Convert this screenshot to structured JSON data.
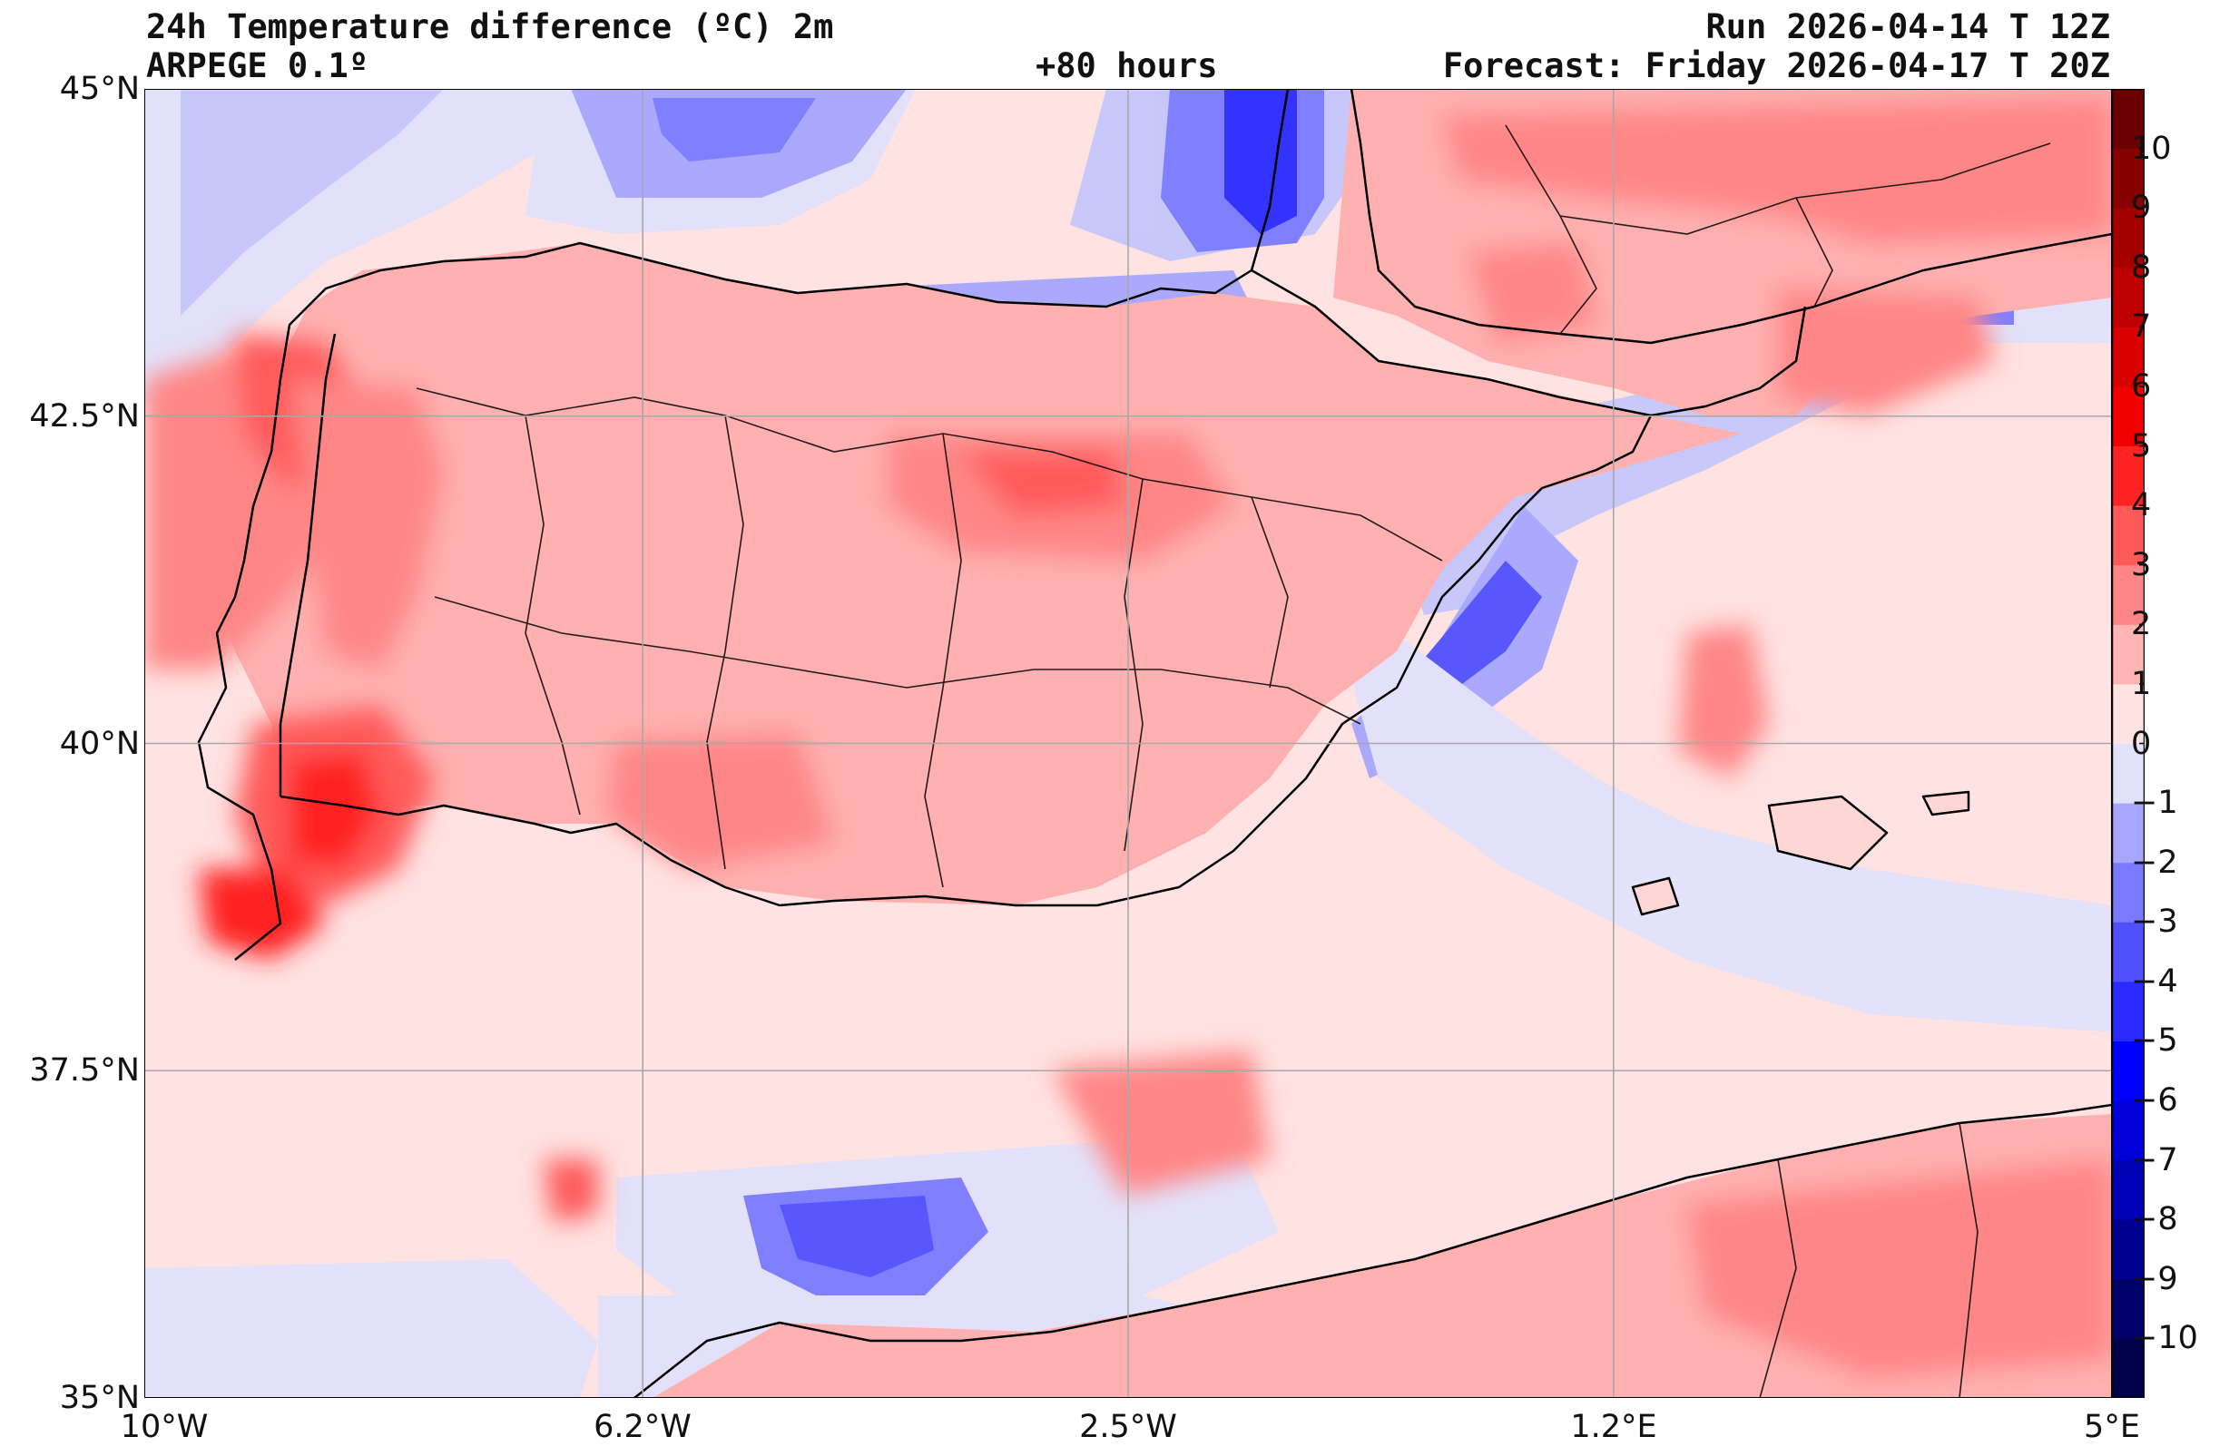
{
  "header": {
    "title": "24h Temperature difference (ºC) 2m",
    "model": "ARPEGE 0.1º",
    "lead_time": "+80 hours",
    "run": "Run 2026-04-14 T 12Z",
    "forecast": "Forecast: Friday 2026-04-17 T 20Z"
  },
  "map": {
    "extent": {
      "lon_min": -10,
      "lon_max": 5,
      "lat_min": 35,
      "lat_max": 45
    },
    "lat_ticks": [
      {
        "value": 45,
        "label": "45°N"
      },
      {
        "value": 42.5,
        "label": "42.5°N"
      },
      {
        "value": 40,
        "label": "40°N"
      },
      {
        "value": 37.5,
        "label": "37.5°N"
      },
      {
        "value": 35,
        "label": "35°N"
      }
    ],
    "lon_ticks": [
      {
        "value": -10,
        "label": "10°W"
      },
      {
        "value": -6.2,
        "label": "6.2°W"
      },
      {
        "value": -2.5,
        "label": "2.5°W"
      },
      {
        "value": 1.2,
        "label": "1.2°E"
      },
      {
        "value": 5,
        "label": "5°E"
      }
    ],
    "gridlines": true
  },
  "colorbar": {
    "levels": [
      -11,
      -10,
      -9,
      -8,
      -7,
      -6,
      -5,
      -4,
      -3,
      -2,
      -1,
      0,
      1,
      2,
      3,
      4,
      5,
      6,
      7,
      8,
      9,
      10,
      11
    ],
    "labels": [
      "10",
      "9",
      "8",
      "7",
      "6",
      "5",
      "4",
      "3",
      "2",
      "1",
      "0",
      "−1",
      "−2",
      "−3",
      "−4",
      "−5",
      "−6",
      "−7",
      "−8",
      "−9",
      "−10"
    ],
    "label_values": [
      10,
      9,
      8,
      7,
      6,
      5,
      4,
      3,
      2,
      1,
      0,
      -1,
      -2,
      -3,
      -4,
      -5,
      -6,
      -7,
      -8,
      -9,
      -10
    ],
    "colors": {
      "-11": "#00004a",
      "-10": "#00006a",
      "-9": "#000090",
      "-8": "#0000b4",
      "-7": "#0000d8",
      "-6": "#0000ff",
      "-5": "#2a2aff",
      "-4": "#5050ff",
      "-3": "#7a7aff",
      "-2": "#a6a6ff",
      "-1": "#e1e1fb",
      "0": "#ffe2e2",
      "1": "#ffb4b4",
      "2": "#ff8686",
      "3": "#ff5a5a",
      "4": "#ff2424",
      "5": "#f20000",
      "6": "#d80000",
      "7": "#be0000",
      "8": "#a40000",
      "9": "#880000",
      "10": "#6a0000"
    },
    "sea_background": "#ffe2e2",
    "land_background": "#ffb0b0"
  }
}
